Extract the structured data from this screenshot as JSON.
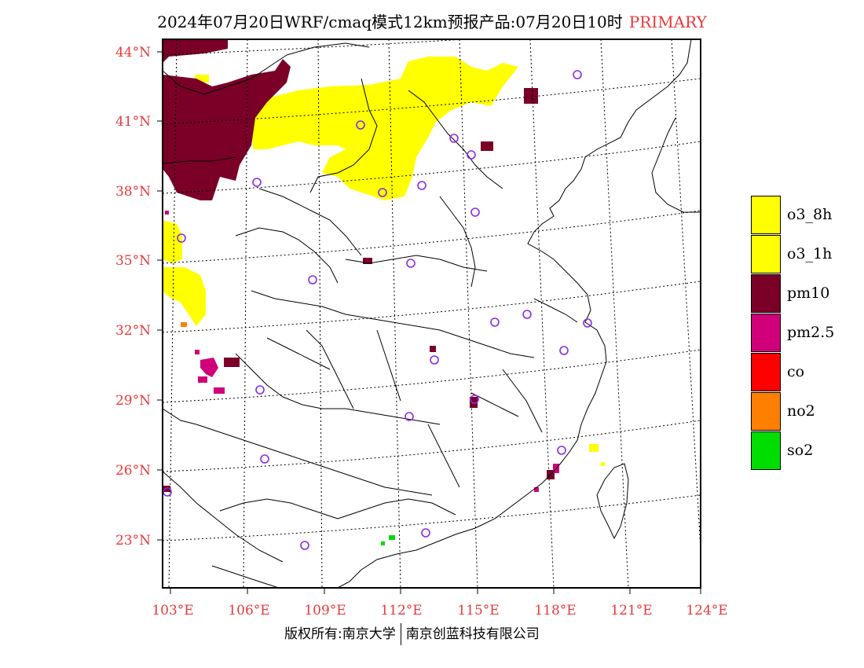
{
  "title": {
    "text": "2024年07月20日WRF/cmaq模式12km预报产品:07月20日10时",
    "tag": "PRIMARY"
  },
  "axes": {
    "lat_labels": [
      "44°N",
      "41°N",
      "38°N",
      "35°N",
      "32°N",
      "29°N",
      "26°N",
      "23°N"
    ],
    "lon_labels": [
      "103°E",
      "106°E",
      "109°E",
      "112°E",
      "115°E",
      "118°E",
      "121°E",
      "124°E"
    ]
  },
  "legend": [
    {
      "label": "o3_8h",
      "color": "#ffff00"
    },
    {
      "label": "o3_1h",
      "color": "#ffff00"
    },
    {
      "label": "pm10",
      "color": "#7a0028"
    },
    {
      "label": "pm2.5",
      "color": "#d0007a"
    },
    {
      "label": "co",
      "color": "#ff0000"
    },
    {
      "label": "no2",
      "color": "#ff7f00"
    },
    {
      "label": "so2",
      "color": "#00dd00"
    }
  ],
  "colors": {
    "label_red": "#e8393a",
    "station_circle": "#8a2be2"
  },
  "copyright": {
    "left": "版权所有:南京大学",
    "right": "南京创蓝科技有限公司"
  }
}
